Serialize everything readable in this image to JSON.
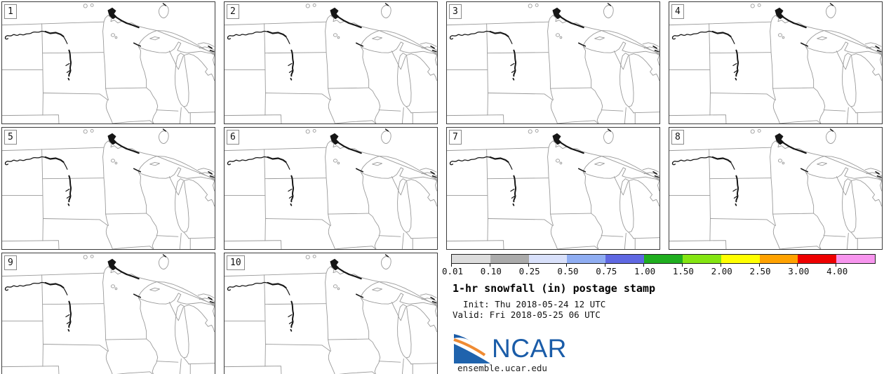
{
  "figure": {
    "title": "1-hr snowfall (in) postage stamp",
    "init_line": "  Init: Thu 2018-05-24 12 UTC",
    "valid_line": "Valid: Fri 2018-05-25 06 UTC",
    "site": "ensemble.ucar.edu",
    "logo_text": "NCAR"
  },
  "panels": [
    {
      "label": "1"
    },
    {
      "label": "2"
    },
    {
      "label": "3"
    },
    {
      "label": "4"
    },
    {
      "label": "5"
    },
    {
      "label": "6"
    },
    {
      "label": "7"
    },
    {
      "label": "8"
    },
    {
      "label": "9"
    },
    {
      "label": "10"
    }
  ],
  "colorbar": {
    "ticks": [
      "0.01",
      "0.10",
      "0.25",
      "0.50",
      "0.75",
      "1.00",
      "1.50",
      "2.00",
      "2.50",
      "3.00",
      "4.00"
    ],
    "colors": [
      "#dcdcdc",
      "#ababab",
      "#d8e0fa",
      "#8fadf2",
      "#5f68e2",
      "#1fae1f",
      "#84e512",
      "#ffff00",
      "#ffa200",
      "#ee0000",
      "#f795ee"
    ]
  },
  "chart_data": {
    "type": "heatmap",
    "subtype": "ensemble-postage-stamp-maps",
    "title": "1-hr snowfall (in) postage stamp",
    "init": "Thu 2018-05-24 12 UTC",
    "valid": "Fri 2018-05-25 06 UTC",
    "ensemble_members": [
      "1",
      "2",
      "3",
      "4",
      "5",
      "6",
      "7",
      "8",
      "9",
      "10"
    ],
    "map_region": "Upper Midwest USA (Montana/Dakotas east to the Great Lakes, Nebraska/Iowa north into southern Canada)",
    "colorbar_levels_in": [
      0.01,
      0.1,
      0.25,
      0.5,
      0.75,
      1.0,
      1.5,
      2.0,
      2.5,
      3.0,
      4.0
    ],
    "colorbar_colors": [
      "#dcdcdc",
      "#ababab",
      "#d8e0fa",
      "#8fadf2",
      "#5f68e2",
      "#1fae1f",
      "#84e512",
      "#ffff00",
      "#ffa200",
      "#ee0000",
      "#f795ee"
    ],
    "values_note": "All 10 ensemble member maps are unshaded: no 1-hr snowfall >= 0.01 in anywhere in the domain at this valid time",
    "legend_position": "bottom-right block with colorbar, title, init/valid times and NCAR logo"
  }
}
